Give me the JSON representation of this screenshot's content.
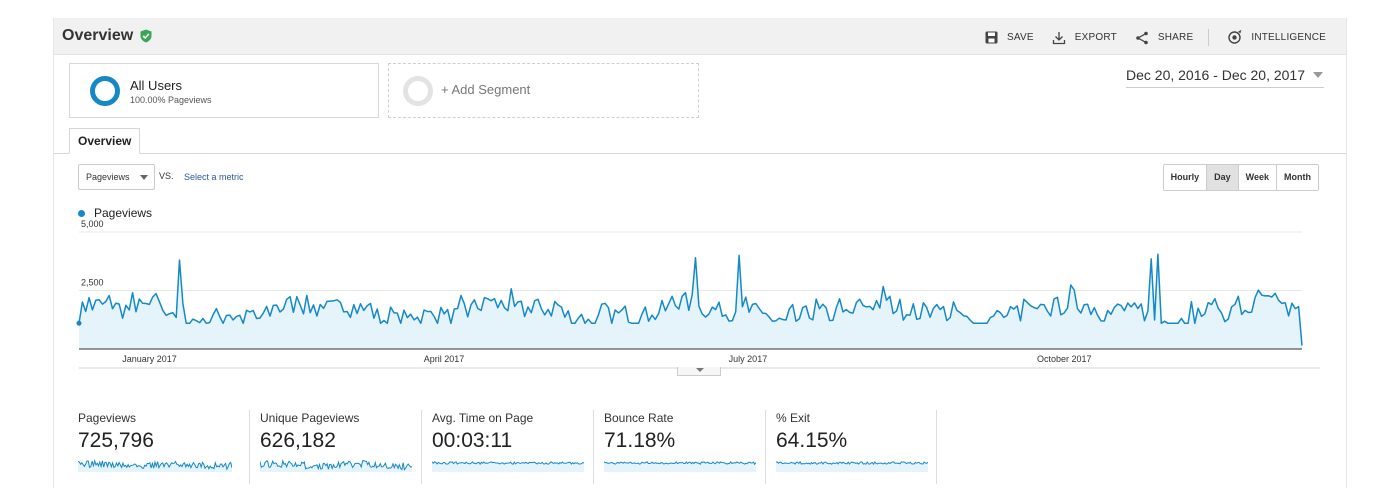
{
  "header": {
    "title": "Overview",
    "actions": [
      {
        "label": "SAVE",
        "icon": "save-icon"
      },
      {
        "label": "EXPORT",
        "icon": "export-icon"
      },
      {
        "label": "SHARE",
        "icon": "share-icon"
      },
      {
        "label": "INTELLIGENCE",
        "icon": "intelligence-icon"
      }
    ]
  },
  "segments": {
    "primary": {
      "name": "All Users",
      "sub": "100.00% Pageviews"
    },
    "add_label": "+ Add Segment"
  },
  "date_range": "Dec 20, 2016 - Dec 20, 2017",
  "tab": "Overview",
  "controls": {
    "metric": "Pageviews",
    "vs": "VS.",
    "select_metric": "Select a metric",
    "granularity": [
      "Hourly",
      "Day",
      "Week",
      "Month"
    ],
    "active_granularity": "Day"
  },
  "legend": "Pageviews",
  "colors": {
    "series": "#1589c7",
    "fill": "#e5f3fa",
    "accent_check": "#3aa757"
  },
  "chart_data": {
    "type": "area",
    "series": [
      {
        "name": "Pageviews"
      }
    ],
    "y_ticks": [
      "5,000",
      "2,500"
    ],
    "ylim": [
      0,
      5000
    ],
    "x_labels": [
      "January 2017",
      "April 2017",
      "July 2017",
      "October 2017"
    ],
    "x_range": [
      "2016-12-20",
      "2017-12-20"
    ],
    "x_label_dates": [
      "2017-01-01",
      "2017-04-01",
      "2017-07-01",
      "2017-10-01"
    ],
    "peaks": [
      {
        "date": "2017-01-19",
        "value": 3800
      },
      {
        "date": "2017-06-22",
        "value": 3900
      },
      {
        "date": "2017-07-05",
        "value": 4000
      },
      {
        "date": "2017-11-07",
        "value": 4050
      },
      {
        "date": "2017-11-05",
        "value": 3850
      }
    ],
    "end_value": 150,
    "typical_range": [
      1100,
      2800
    ]
  },
  "kpis": [
    {
      "label": "Pageviews",
      "value": "725,796"
    },
    {
      "label": "Unique Pageviews",
      "value": "626,182"
    },
    {
      "label": "Avg. Time on Page",
      "value": "00:03:11"
    },
    {
      "label": "Bounce Rate",
      "value": "71.18%"
    },
    {
      "label": "% Exit",
      "value": "64.15%"
    }
  ]
}
